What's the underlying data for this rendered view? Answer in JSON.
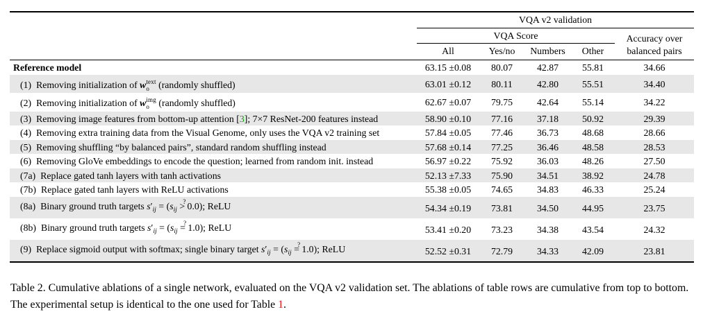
{
  "colors": {
    "cite_green": "#00a000",
    "link_red": "#ee1515"
  },
  "table": {
    "header": {
      "group_top": "VQA v2 validation",
      "group_score": "VQA Score",
      "col_all": "All",
      "col_yesno": "Yes/no",
      "col_numbers": "Numbers",
      "col_other": "Other",
      "col_balanced_line1": "Accuracy over",
      "col_balanced_line2": "balanced pairs"
    },
    "rows": [
      {
        "shaded": false,
        "tall": false,
        "label": [
          {
            "t": "Reference model",
            "s": "b"
          }
        ],
        "all": "63.15 ±0.08",
        "yesno": "80.07",
        "numbers": "42.87",
        "other": "55.81",
        "balanced": "34.66"
      },
      {
        "shaded": true,
        "tall": false,
        "label": [
          {
            "t": "(1)",
            "s": "num"
          },
          {
            "t": "Removing initialization of ",
            "s": ""
          },
          {
            "t": "w",
            "s": "wbi"
          },
          {
            "t": "o",
            "s": "sub0"
          },
          {
            "t": "text",
            "s": "sup"
          },
          {
            "t": " (randomly shuffled)",
            "s": ""
          }
        ],
        "all": "63.01 ±0.12",
        "yesno": "80.11",
        "numbers": "42.80",
        "other": "55.51",
        "balanced": "34.40"
      },
      {
        "shaded": false,
        "tall": false,
        "label": [
          {
            "t": "(2)",
            "s": "num"
          },
          {
            "t": "Removing initialization of ",
            "s": ""
          },
          {
            "t": "w",
            "s": "wbi"
          },
          {
            "t": "o",
            "s": "sub0"
          },
          {
            "t": "img",
            "s": "sup"
          },
          {
            "t": " (randomly shuffled)",
            "s": ""
          }
        ],
        "all": "62.67 ±0.07",
        "yesno": "79.75",
        "numbers": "42.64",
        "other": "55.14",
        "balanced": "34.22"
      },
      {
        "shaded": true,
        "tall": false,
        "label": [
          {
            "t": "(3)",
            "s": "num"
          },
          {
            "t": "Removing image features from bottom-up attention [",
            "s": ""
          },
          {
            "t": "3",
            "s": "cite"
          },
          {
            "t": "]; 7×7 ResNet-200 features instead",
            "s": ""
          }
        ],
        "all": "58.90 ±0.10",
        "yesno": "77.16",
        "numbers": "37.18",
        "other": "50.92",
        "balanced": "29.39"
      },
      {
        "shaded": false,
        "tall": false,
        "label": [
          {
            "t": "(4)",
            "s": "num"
          },
          {
            "t": "Removing extra training data from the Visual Genome, only uses the VQA v2 training set",
            "s": ""
          }
        ],
        "all": "57.84 ±0.05",
        "yesno": "77.46",
        "numbers": "36.73",
        "other": "48.68",
        "balanced": "28.66"
      },
      {
        "shaded": true,
        "tall": false,
        "label": [
          {
            "t": "(5)",
            "s": "num"
          },
          {
            "t": "Removing shuffling “by balanced pairs”, standard random shuffling instead",
            "s": ""
          }
        ],
        "all": "57.68 ±0.14",
        "yesno": "77.25",
        "numbers": "36.46",
        "other": "48.58",
        "balanced": "28.53"
      },
      {
        "shaded": false,
        "tall": false,
        "label": [
          {
            "t": "(6)",
            "s": "num"
          },
          {
            "t": "Removing GloVe embeddings to encode the question; learned from random init. instead",
            "s": ""
          }
        ],
        "all": "56.97 ±0.22",
        "yesno": "75.92",
        "numbers": "36.03",
        "other": "48.26",
        "balanced": "27.50"
      },
      {
        "shaded": true,
        "tall": false,
        "label": [
          {
            "t": "(7a)",
            "s": "num"
          },
          {
            "t": "Replace gated tanh layers with tanh activations",
            "s": ""
          }
        ],
        "all": "52.13 ±7.33",
        "yesno": "75.90",
        "numbers": "34.51",
        "other": "38.92",
        "balanced": "24.78"
      },
      {
        "shaded": false,
        "tall": false,
        "label": [
          {
            "t": "(7b)",
            "s": "num"
          },
          {
            "t": "Replace gated tanh layers with ReLU activations",
            "s": ""
          }
        ],
        "all": "55.38 ±0.05",
        "yesno": "74.65",
        "numbers": "34.83",
        "other": "46.33",
        "balanced": "25.24"
      },
      {
        "shaded": true,
        "tall": true,
        "label": [
          {
            "t": "(8a)",
            "s": "num"
          },
          {
            "t": "Binary ground truth targets ",
            "s": ""
          },
          {
            "t": "s",
            "s": "i"
          },
          {
            "t": "′",
            "s": ""
          },
          {
            "t": "ij",
            "s": "subi"
          },
          {
            "t": " = (",
            "s": ""
          },
          {
            "t": "s",
            "s": "i"
          },
          {
            "t": "ij",
            "s": "subi"
          },
          {
            "t": " ",
            "s": ""
          },
          {
            "t": "?",
            "s": "qtop"
          },
          {
            "t": "> 0.0);",
            "s": ""
          },
          {
            "t": "  ReLU",
            "s": ""
          }
        ],
        "all": "54.34 ±0.19",
        "yesno": "73.81",
        "numbers": "34.50",
        "other": "44.95",
        "balanced": "23.75"
      },
      {
        "shaded": false,
        "tall": true,
        "label": [
          {
            "t": "(8b)",
            "s": "num"
          },
          {
            "t": "Binary ground truth targets ",
            "s": ""
          },
          {
            "t": "s",
            "s": "i"
          },
          {
            "t": "′",
            "s": ""
          },
          {
            "t": "ij",
            "s": "subi"
          },
          {
            "t": " = (",
            "s": ""
          },
          {
            "t": "s",
            "s": "i"
          },
          {
            "t": "ij",
            "s": "subi"
          },
          {
            "t": " ",
            "s": ""
          },
          {
            "t": "?",
            "s": "qtop"
          },
          {
            "t": "= 1.0);",
            "s": ""
          },
          {
            "t": "  ReLU",
            "s": ""
          }
        ],
        "all": "53.41 ±0.20",
        "yesno": "73.23",
        "numbers": "34.38",
        "other": "43.54",
        "balanced": "24.32"
      },
      {
        "shaded": true,
        "tall": true,
        "label": [
          {
            "t": "(9)",
            "s": "num"
          },
          {
            "t": "Replace sigmoid output with softmax; single binary target ",
            "s": ""
          },
          {
            "t": "s",
            "s": "i"
          },
          {
            "t": "′",
            "s": ""
          },
          {
            "t": "ij",
            "s": "subi"
          },
          {
            "t": " = (",
            "s": ""
          },
          {
            "t": "s",
            "s": "i"
          },
          {
            "t": "ij",
            "s": "subi"
          },
          {
            "t": " ",
            "s": ""
          },
          {
            "t": "?",
            "s": "qtop"
          },
          {
            "t": "= 1.0);",
            "s": ""
          },
          {
            "t": "  ReLU",
            "s": ""
          }
        ],
        "all": "52.52 ±0.31",
        "yesno": "72.79",
        "numbers": "34.33",
        "other": "42.09",
        "balanced": "23.81"
      }
    ]
  },
  "caption": {
    "pre": "Table 2. Cumulative ablations of a single network, evaluated on the VQA v2 validation set. The ablations of table rows are cumulative from top to bottom. The experimental setup is identical to the one used for Table ",
    "link": "1",
    "post": "."
  }
}
